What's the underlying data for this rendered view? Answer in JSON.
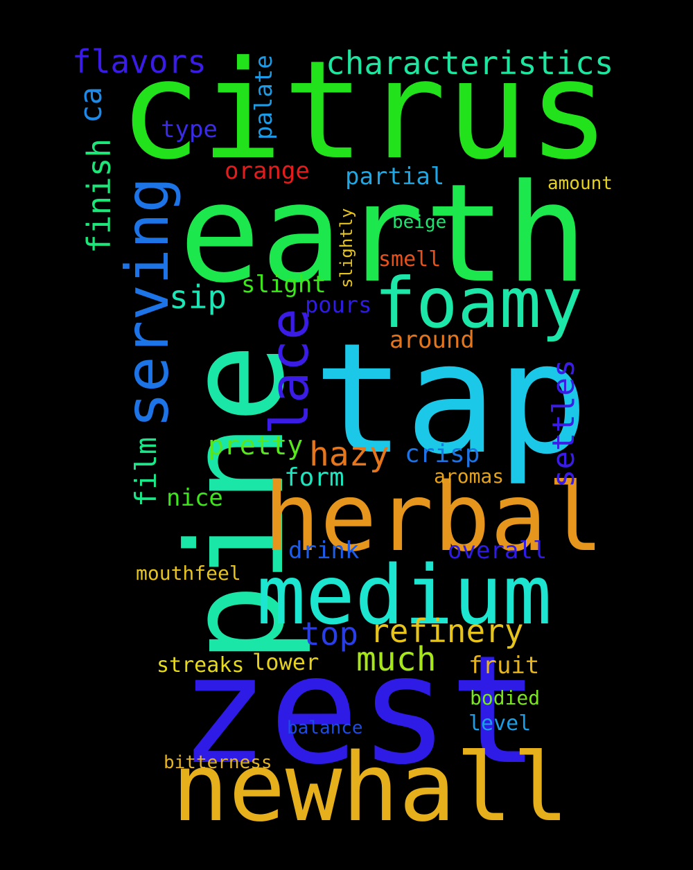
{
  "words": [
    {
      "text": "citrus",
      "color": "#22e21c"
    },
    {
      "text": "earth",
      "color": "#1ce84e"
    },
    {
      "text": "pine",
      "color": "#1ae6a8"
    },
    {
      "text": "tap",
      "color": "#1cc8e8"
    },
    {
      "text": "zest",
      "color": "#2e1ce6"
    },
    {
      "text": "newhall",
      "color": "#e6b01c"
    },
    {
      "text": "herbal",
      "color": "#e6961c"
    },
    {
      "text": "medium",
      "color": "#1ce6cf"
    },
    {
      "text": "foamy",
      "color": "#1ce6a8"
    },
    {
      "text": "serving",
      "color": "#1c74e6"
    },
    {
      "text": "lace",
      "color": "#3b1ce6"
    },
    {
      "text": "characteristics",
      "color": "#1ce6a0"
    },
    {
      "text": "flavors",
      "color": "#3a1ce6"
    },
    {
      "text": "finish",
      "color": "#1ce67a"
    },
    {
      "text": "ca",
      "color": "#1c8ae6"
    },
    {
      "text": "palate",
      "color": "#1c9be6"
    },
    {
      "text": "type",
      "color": "#3a2ce6"
    },
    {
      "text": "orange",
      "color": "#e61c1c"
    },
    {
      "text": "partial",
      "color": "#1ca8e6"
    },
    {
      "text": "amount",
      "color": "#e6d21c"
    },
    {
      "text": "beige",
      "color": "#1ce670"
    },
    {
      "text": "slightly",
      "color": "#e6c41c"
    },
    {
      "text": "smell",
      "color": "#e6521c"
    },
    {
      "text": "sip",
      "color": "#1ce6b6"
    },
    {
      "text": "slight",
      "color": "#3ee61c"
    },
    {
      "text": "pours",
      "color": "#2e1ce6"
    },
    {
      "text": "around",
      "color": "#e6761c"
    },
    {
      "text": "settles",
      "color": "#3a1ce6"
    },
    {
      "text": "pretty",
      "color": "#58e61c"
    },
    {
      "text": "hazy",
      "color": "#e6761c"
    },
    {
      "text": "crisp",
      "color": "#1c74e6"
    },
    {
      "text": "film",
      "color": "#1ce68a"
    },
    {
      "text": "form",
      "color": "#1ce6c0"
    },
    {
      "text": "aromas",
      "color": "#e6a41c"
    },
    {
      "text": "nice",
      "color": "#3ee61c"
    },
    {
      "text": "drink",
      "color": "#1c5ce6"
    },
    {
      "text": "overall",
      "color": "#2e1ce6"
    },
    {
      "text": "mouthfeel",
      "color": "#e6c41c"
    },
    {
      "text": "top",
      "color": "#2a3ee6"
    },
    {
      "text": "refinery",
      "color": "#e6c41c"
    },
    {
      "text": "much",
      "color": "#a8e61c"
    },
    {
      "text": "streaks",
      "color": "#e6da1c"
    },
    {
      "text": "lower",
      "color": "#e6d21c"
    },
    {
      "text": "fruit",
      "color": "#e6b41c"
    },
    {
      "text": "bodied",
      "color": "#7ae61c"
    },
    {
      "text": "level",
      "color": "#1c9ee6"
    },
    {
      "text": "balance",
      "color": "#1c4ce6"
    },
    {
      "text": "bitterness",
      "color": "#e6b41c"
    }
  ]
}
